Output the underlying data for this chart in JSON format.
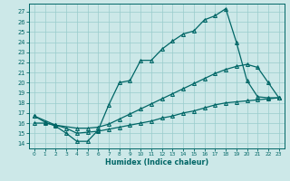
{
  "xlabel": "Humidex (Indice chaleur)",
  "bg_color": "#cce8e8",
  "grid_color": "#99cccc",
  "line_color": "#006666",
  "xlim": [
    -0.5,
    23.5
  ],
  "ylim": [
    13.5,
    27.8
  ],
  "xticks": [
    0,
    1,
    2,
    3,
    4,
    5,
    6,
    7,
    8,
    9,
    10,
    11,
    12,
    13,
    14,
    15,
    16,
    17,
    18,
    19,
    20,
    21,
    22,
    23
  ],
  "yticks": [
    14,
    15,
    16,
    17,
    18,
    19,
    20,
    21,
    22,
    23,
    24,
    25,
    26,
    27
  ],
  "line1_x": [
    0,
    1,
    2,
    3,
    4,
    5,
    6,
    7,
    8,
    9,
    10,
    11,
    12,
    13,
    14,
    15,
    16,
    17,
    18,
    19,
    20,
    21,
    22,
    23
  ],
  "line1_y": [
    16.7,
    16.1,
    15.7,
    15.0,
    14.2,
    14.2,
    15.3,
    17.8,
    20.0,
    20.2,
    22.2,
    22.2,
    23.3,
    24.1,
    24.8,
    25.1,
    26.2,
    26.6,
    27.3,
    24.0,
    20.2,
    18.6,
    18.5,
    18.5
  ],
  "line2_x": [
    0,
    2,
    4,
    5,
    6,
    7,
    8,
    9,
    10,
    11,
    12,
    13,
    14,
    15,
    16,
    17,
    18,
    19,
    20,
    21,
    22,
    23
  ],
  "line2_y": [
    16.7,
    15.8,
    15.5,
    15.5,
    15.6,
    15.9,
    16.4,
    16.9,
    17.4,
    17.9,
    18.4,
    18.9,
    19.4,
    19.9,
    20.4,
    20.9,
    21.3,
    21.6,
    21.8,
    21.5,
    20.0,
    18.5
  ],
  "line3_x": [
    0,
    1,
    2,
    3,
    4,
    5,
    6,
    7,
    8,
    9,
    10,
    11,
    12,
    13,
    14,
    15,
    16,
    17,
    18,
    19,
    20,
    21,
    22,
    23
  ],
  "line3_y": [
    16.0,
    16.0,
    15.8,
    15.5,
    15.0,
    15.1,
    15.2,
    15.4,
    15.6,
    15.8,
    16.0,
    16.2,
    16.5,
    16.7,
    17.0,
    17.2,
    17.5,
    17.8,
    18.0,
    18.1,
    18.2,
    18.3,
    18.4,
    18.5
  ]
}
